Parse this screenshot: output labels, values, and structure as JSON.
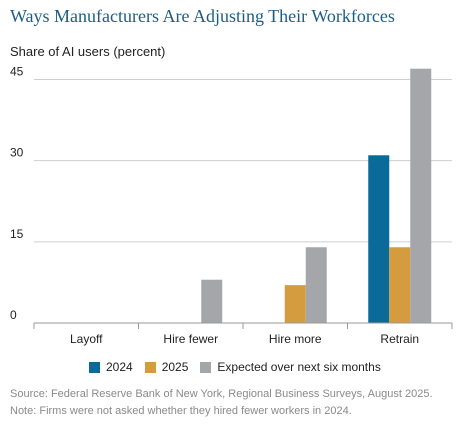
{
  "chart_data": {
    "type": "bar",
    "title": "Ways Manufacturers Are Adjusting Their Workforces",
    "ylabel": "Share of AI users (percent)",
    "xlabel": "",
    "categories": [
      "Layoff",
      "Hire fewer",
      "Hire more",
      "Retrain"
    ],
    "yticks": [
      0,
      15,
      30,
      45
    ],
    "ylim": [
      0,
      47.5
    ],
    "grid": true,
    "legend_position": "bottom",
    "series": [
      {
        "name": "2024",
        "color": "#0a6a99",
        "values": [
          0,
          null,
          0,
          31
        ]
      },
      {
        "name": "2025",
        "color": "#d49b3f",
        "values": [
          0,
          0,
          7,
          14
        ]
      },
      {
        "name": "Expected over next six months",
        "color": "#a4a6aa",
        "values": [
          0,
          8,
          14,
          47
        ]
      }
    ]
  },
  "notes": {
    "source": "Source: Federal Reserve Bank of New York, Regional Business Surveys, August 2025.",
    "note": "Note: Firms were not asked whether they hired fewer workers in 2024."
  }
}
